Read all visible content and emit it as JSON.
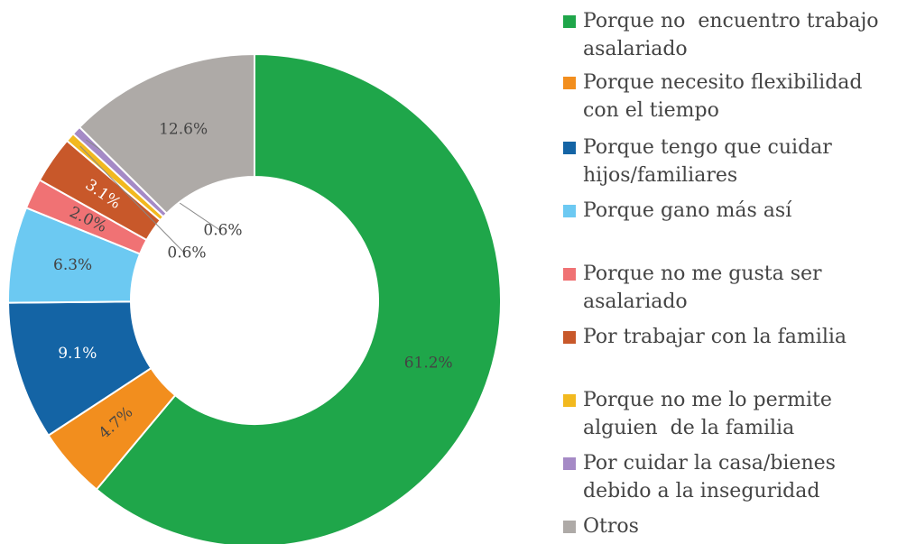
{
  "chart_data": {
    "type": "pie",
    "categories": [
      "Porque no  encuentro trabajo asalariado",
      "Porque necesito flexibilidad con el tiempo",
      "Porque tengo que cuidar hijos/familiares",
      "Porque gano más así",
      "Porque no me gusta ser asalariado",
      "Por trabajar con la familia",
      "Porque no me lo permite alguien  de la familia",
      "Por cuidar la casa/bienes debido a la inseguridad",
      "Otros"
    ],
    "values": [
      61.2,
      4.7,
      9.1,
      6.3,
      2.0,
      3.1,
      0.6,
      0.6,
      12.6
    ],
    "value_labels": [
      "61.2%",
      "4.7%",
      "9.1%",
      "6.3%",
      "2.0%",
      "3.1%",
      "0.6%",
      "0.6%",
      "12.6%"
    ],
    "colors": [
      "#1fa64a",
      "#f28e1e",
      "#1464a5",
      "#6cc9f2",
      "#f07274",
      "#c8582a",
      "#f2b91f",
      "#a58ac6",
      "#aeaaa7"
    ],
    "donut": true,
    "legend": "right"
  }
}
